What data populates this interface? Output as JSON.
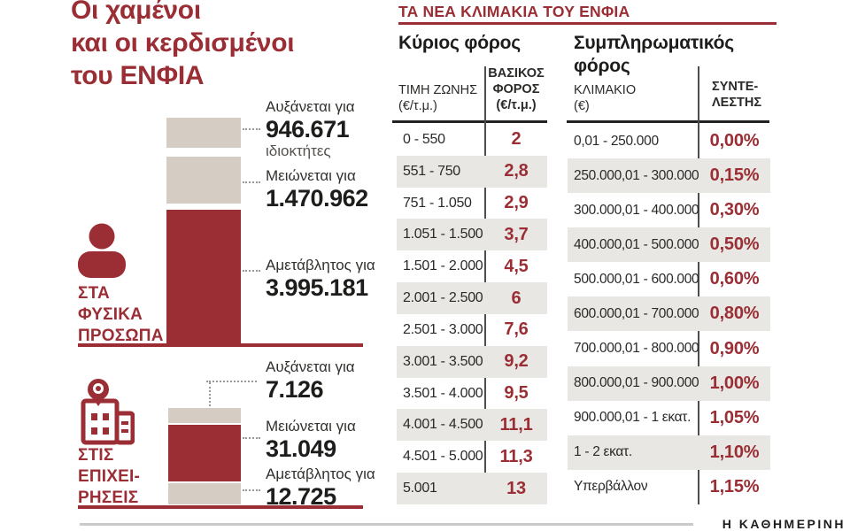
{
  "colors": {
    "accent_red": "#9a2e34",
    "bar_beige": "#d5cdc3",
    "row_gray": "#e8e7e4",
    "text_dark": "#1d1d1b"
  },
  "title": {
    "lines": [
      "Οι χαμένοι",
      "και οι κερδισμένοι",
      "του ΕΝΦΙΑ"
    ]
  },
  "individuals": {
    "category_lines": [
      "ΣΤΑ",
      "ΦΥΣΙΚΑ",
      "ΠΡΟΣΩΠΑ"
    ],
    "bars": [
      {
        "label": "Αυξάνεται για",
        "value": "946.671",
        "note": "ιδιοκτήτες",
        "color": "#d5cdc3"
      },
      {
        "label": "Μειώνεται για",
        "value": "1.470.962",
        "color": "#d5cdc3"
      },
      {
        "label": "Αμετάβλητος για",
        "value": "3.995.181",
        "color": "#9a2e34"
      }
    ]
  },
  "businesses": {
    "category_lines": [
      "ΣΤΙΣ",
      "ΕΠΙΧΕΙ-",
      "ΡΗΣΕΙΣ"
    ],
    "bars": [
      {
        "label": "Αυξάνεται για",
        "value": "7.126",
        "color": "#d5cdc3"
      },
      {
        "label": "Μειώνεται για",
        "value": "31.049",
        "color": "#9a2e34"
      },
      {
        "label": "Αμετάβλητος για",
        "value": "12.725",
        "color": "#d5cdc3"
      }
    ]
  },
  "tables": {
    "title": "ΤΑ ΝΕΑ ΚΛΙΜΑΚΙΑ ΤΟΥ ΕΝΦΙΑ",
    "main": {
      "heading": "Κύριος φόρος",
      "col1_lines": [
        "ΤΙΜΗ ΖΩΝΗΣ",
        "(€/τ.μ.)"
      ],
      "col2_lines": [
        "ΒΑΣΙΚΟΣ",
        "ΦΟΡΟΣ",
        "(€/τ.μ.)"
      ],
      "rows": [
        [
          "0 - 550",
          "2"
        ],
        [
          "551 - 750",
          "2,8"
        ],
        [
          "751 - 1.050",
          "2,9"
        ],
        [
          "1.051 - 1.500",
          "3,7"
        ],
        [
          "1.501 - 2.000",
          "4,5"
        ],
        [
          "2.001 - 2.500",
          "6"
        ],
        [
          "2.501 - 3.000",
          "7,6"
        ],
        [
          "3.001 - 3.500",
          "9,2"
        ],
        [
          "3.501 - 4.000",
          "9,5"
        ],
        [
          "4.001 - 4.500",
          "11,1"
        ],
        [
          "4.501 - 5.000",
          "11,3"
        ],
        [
          "5.001",
          "13"
        ]
      ]
    },
    "supplementary": {
      "heading_lines": [
        "Συμπληρωματικός",
        "φόρος"
      ],
      "col1_lines": [
        "ΚΛΙΜΑΚΙΟ",
        "(€)"
      ],
      "col2_lines": [
        "ΣΥΝΤΕ-",
        "ΛΕΣΤΗΣ"
      ],
      "rows": [
        [
          "0,01 - 250.000",
          "0,00%"
        ],
        [
          "250.000,01 - 300.000",
          "0,15%"
        ],
        [
          "300.000,01 - 400.000",
          "0,30%"
        ],
        [
          "400.000,01 - 500.000",
          "0,50%"
        ],
        [
          "500.000,01 - 600.000",
          "0,60%"
        ],
        [
          "600.000,01 - 700.000",
          "0,80%"
        ],
        [
          "700.000,01 - 800.000",
          "0,90%"
        ],
        [
          "800.000,01 - 900.000",
          "1,00%"
        ],
        [
          "900.000,01 - 1 εκατ.",
          "1,05%"
        ],
        [
          "1 - 2 εκατ.",
          "1,10%"
        ],
        [
          "Υπερβάλλον",
          "1,15%"
        ]
      ]
    }
  },
  "footer": {
    "source": "Η ΚΑΘΗΜΕΡΙΝΗ"
  },
  "chart_data": [
    {
      "type": "bar",
      "title": "ΣΤΑ ΦΥΣΙΚΑ ΠΡΟΣΩΠΑ",
      "categories": [
        "Αυξάνεται για",
        "Μειώνεται για",
        "Αμετάβλητος για"
      ],
      "values": [
        946671,
        1470962,
        3995181
      ],
      "unit": "ιδιοκτήτες",
      "orientation": "vertical",
      "bar_colors": [
        "#d5cdc3",
        "#d5cdc3",
        "#9a2e34"
      ]
    },
    {
      "type": "bar",
      "title": "ΣΤΙΣ ΕΠΙΧΕΙΡΗΣΕΙΣ",
      "categories": [
        "Αυξάνεται για",
        "Μειώνεται για",
        "Αμετάβλητος για"
      ],
      "values": [
        7126,
        31049,
        12725
      ],
      "orientation": "vertical",
      "bar_colors": [
        "#d5cdc3",
        "#9a2e34",
        "#d5cdc3"
      ]
    },
    {
      "type": "table",
      "title": "Κύριος φόρος",
      "columns": [
        "ΤΙΜΗ ΖΩΝΗΣ (€/τ.μ.)",
        "ΒΑΣΙΚΟΣ ΦΟΡΟΣ (€/τ.μ.)"
      ],
      "rows": [
        [
          "0 - 550",
          2
        ],
        [
          "551 - 750",
          2.8
        ],
        [
          "751 - 1.050",
          2.9
        ],
        [
          "1.051 - 1.500",
          3.7
        ],
        [
          "1.501 - 2.000",
          4.5
        ],
        [
          "2.001 - 2.500",
          6
        ],
        [
          "2.501 - 3.000",
          7.6
        ],
        [
          "3.001 - 3.500",
          9.2
        ],
        [
          "3.501 - 4.000",
          9.5
        ],
        [
          "4.001 - 4.500",
          11.1
        ],
        [
          "4.501 - 5.000",
          11.3
        ],
        [
          "5.001",
          13
        ]
      ]
    },
    {
      "type": "table",
      "title": "Συμπληρωματικός φόρος",
      "columns": [
        "ΚΛΙΜΑΚΙΟ (€)",
        "ΣΥΝΤΕΛΕΣΤΗΣ"
      ],
      "rows": [
        [
          "0,01 - 250.000",
          "0,00%"
        ],
        [
          "250.000,01 - 300.000",
          "0,15%"
        ],
        [
          "300.000,01 - 400.000",
          "0,30%"
        ],
        [
          "400.000,01 - 500.000",
          "0,50%"
        ],
        [
          "500.000,01 - 600.000",
          "0,60%"
        ],
        [
          "600.000,01 - 700.000",
          "0,80%"
        ],
        [
          "700.000,01 - 800.000",
          "0,90%"
        ],
        [
          "800.000,01 - 900.000",
          "1,00%"
        ],
        [
          "900.000,01 - 1 εκατ.",
          "1,05%"
        ],
        [
          "1 - 2 εκατ.",
          "1,10%"
        ],
        [
          "Υπερβάλλον",
          "1,15%"
        ]
      ]
    }
  ]
}
